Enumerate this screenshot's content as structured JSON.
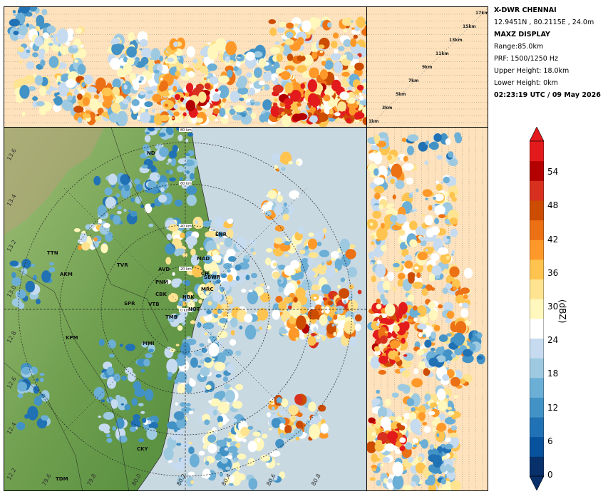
{
  "info": {
    "title": "X-DWR CHENNAI",
    "location": "12.9451N , 80.2115E , 24.0m",
    "display": "MAXZ DISPLAY",
    "range": "Range:85.0km",
    "prf": "PRF: 1500/1250 Hz",
    "upper_height": "Upper Height: 18.0km",
    "lower_height": "Lower Height: 0km",
    "timestamp": "02:23:19 UTC / 09 May 2026"
  },
  "height_labels": [
    "17km",
    "15km",
    "13km",
    "11km",
    "9km",
    "7km",
    "5km",
    "3km",
    "1km"
  ],
  "range_rings": [
    "80 km",
    "60 km",
    "40 km",
    "20 km",
    "0 km"
  ],
  "places": [
    {
      "name": "ND"
    },
    {
      "name": "TTN"
    },
    {
      "name": "AKM"
    },
    {
      "name": "TVR"
    },
    {
      "name": "AVD"
    },
    {
      "name": "PNM"
    },
    {
      "name": "CBK"
    },
    {
      "name": "SPR"
    },
    {
      "name": "VTB"
    },
    {
      "name": "TMB"
    },
    {
      "name": "KPM"
    },
    {
      "name": "MMI"
    },
    {
      "name": "ENR"
    },
    {
      "name": "MAD"
    },
    {
      "name": "CH"
    },
    {
      "name": "SBWR"
    },
    {
      "name": "MRC"
    },
    {
      "name": "NBK"
    },
    {
      "name": "NOT"
    },
    {
      "name": "CKY"
    },
    {
      "name": "TDM"
    }
  ],
  "lat_labels": [
    "13.6",
    "13.4",
    "13.2",
    "13.0",
    "12.8",
    "12.6",
    "12.4",
    "12.2"
  ],
  "lon_labels": [
    "79.6",
    "79.8",
    "80.0",
    "80.2",
    "80.4",
    "80.6",
    "80.8"
  ],
  "colorbar": {
    "label": "(dBZ)",
    "ticks": [
      "0",
      "6",
      "12",
      "18",
      "24",
      "30",
      "36",
      "42",
      "48",
      "54"
    ],
    "colors": [
      "#08306b",
      "#08519c",
      "#2171b5",
      "#4292c6",
      "#6baed6",
      "#9ecae1",
      "#c6dbef",
      "#ffffff",
      "#fff7bc",
      "#fee391",
      "#fec44f",
      "#fe9929",
      "#ec7014",
      "#cc4c02",
      "#d7301f",
      "#b30000",
      "#e31a1c"
    ]
  },
  "colors": {
    "panel_bg": "#fde2bd",
    "sea": "#c9d9e2",
    "land_dark": "#4e8a3a",
    "land_light": "#9fbf77"
  }
}
